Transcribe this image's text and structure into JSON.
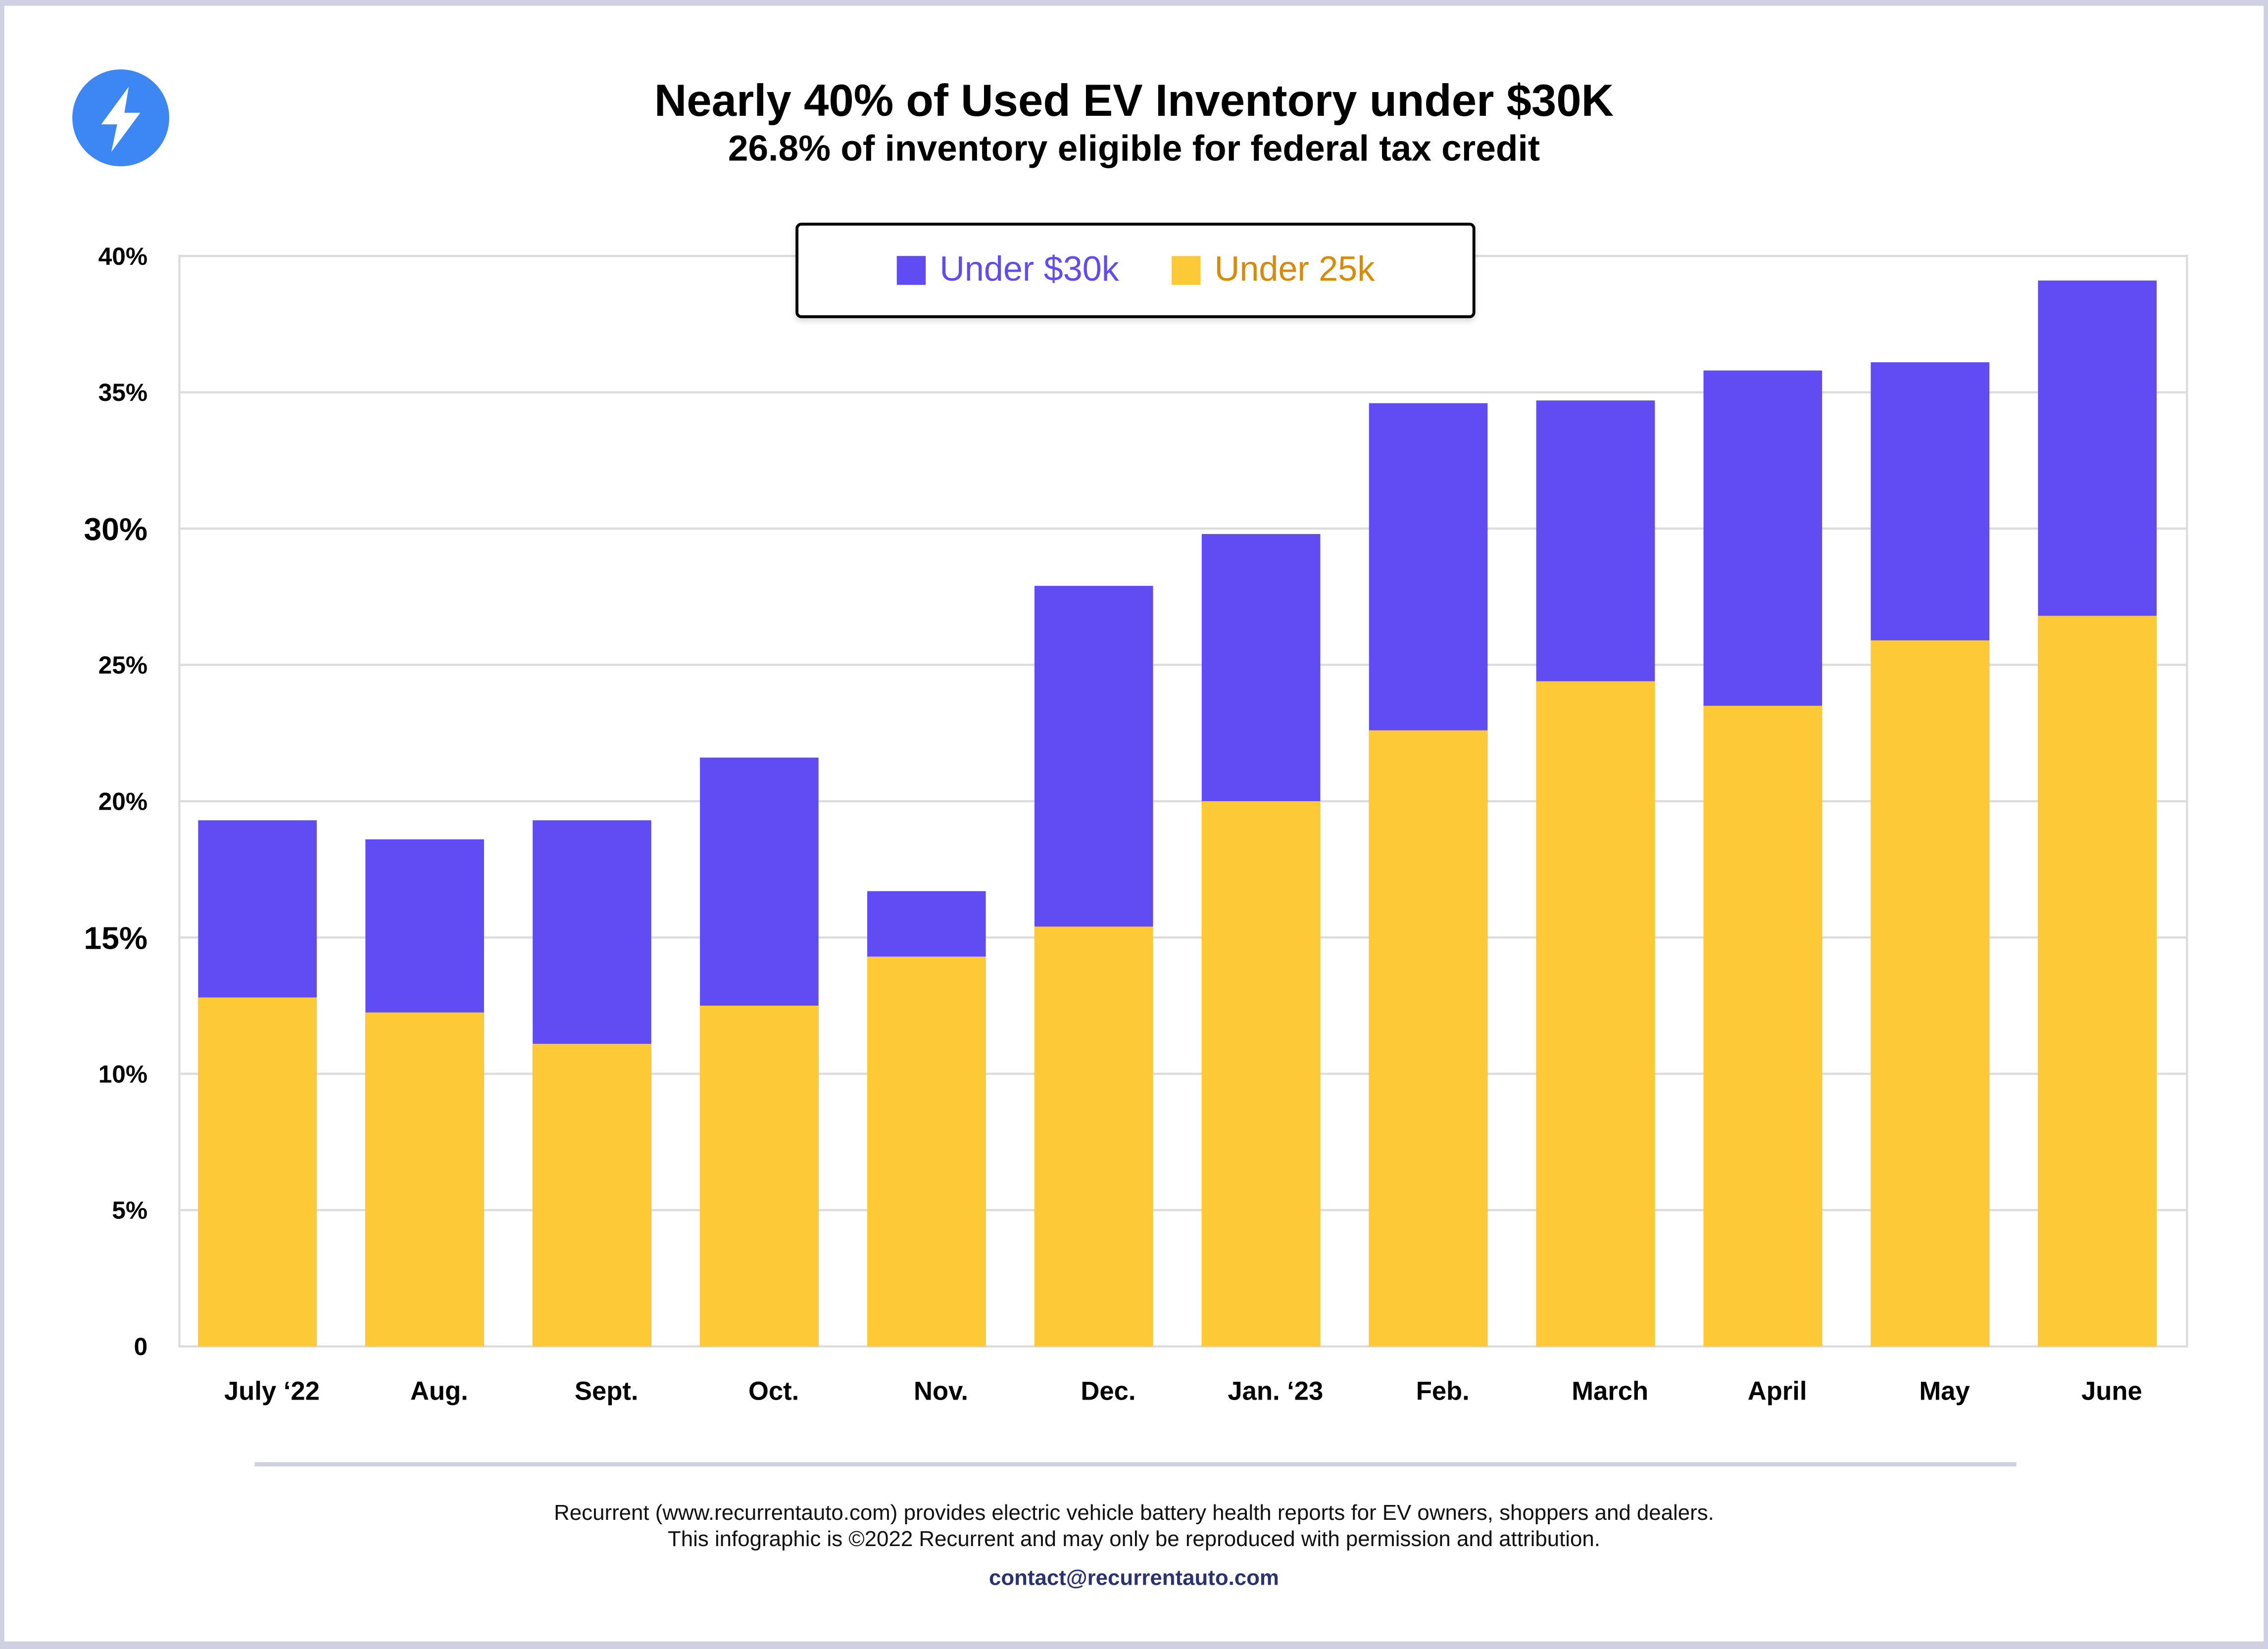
{
  "title": "Nearly 40% of Used EV Inventory under $30K",
  "subtitle": "26.8% of inventory eligible for federal tax credit",
  "logo": "lightning-bolt-icon",
  "footer": {
    "line1": "Recurrent (www.recurrentauto.com) provides electric vehicle battery health reports for EV owners, shoppers and dealers.",
    "line2": "This infographic is ©2022 Recurrent and may only be reproduced with permission and attribution.",
    "contact": "contact@recurrentauto.com"
  },
  "chart_data": {
    "type": "bar",
    "stacked": "overlay",
    "title": "Nearly 40% of Used EV Inventory under $30K",
    "subtitle": "26.8% of inventory eligible for federal tax credit",
    "categories": [
      "July ‘22",
      "Aug.",
      "Sept.",
      "Oct.",
      "Nov.",
      "Dec.",
      "Jan. ‘23",
      "Feb.",
      "March",
      "April",
      "May",
      "June"
    ],
    "series": [
      {
        "name": "Under $30k",
        "color": "#614bf2",
        "values": [
          19.3,
          18.6,
          19.3,
          21.6,
          16.7,
          27.9,
          29.8,
          34.6,
          34.7,
          35.8,
          36.1,
          39.1
        ]
      },
      {
        "name": "Under 25k",
        "color": "#fec936",
        "label_color": "#d98a0a",
        "values": [
          12.8,
          12.25,
          11.1,
          12.5,
          14.3,
          15.4,
          20.0,
          22.6,
          24.4,
          23.5,
          25.9,
          26.8
        ]
      }
    ],
    "yticks": [
      "0",
      "5%",
      "10%",
      "15%",
      "20%",
      "25%",
      "30%",
      "35%",
      "40%"
    ],
    "ylim": [
      0,
      40
    ],
    "xlabel": "",
    "ylabel": "",
    "grid": true,
    "legend": "top-center"
  }
}
